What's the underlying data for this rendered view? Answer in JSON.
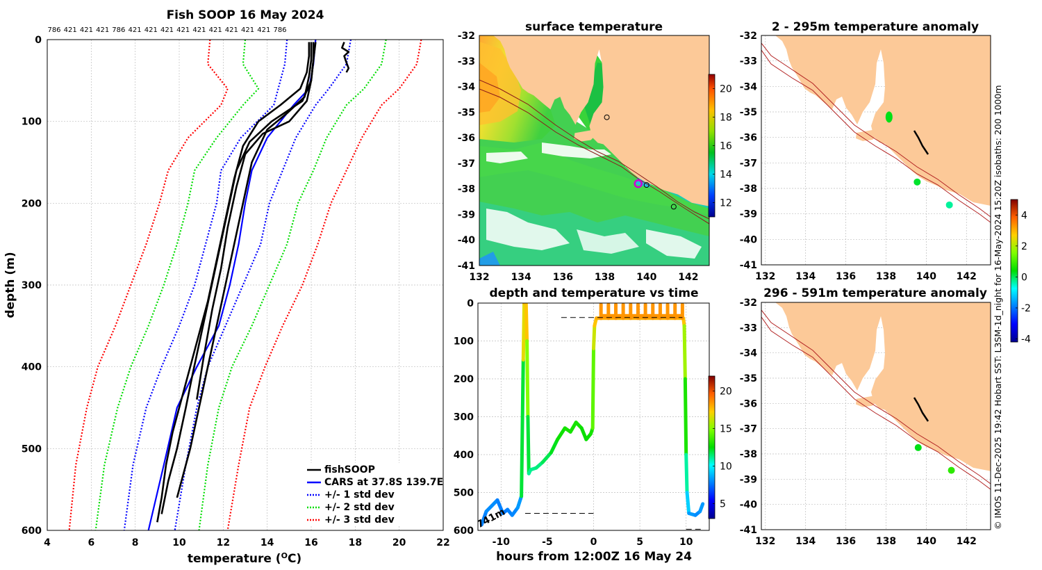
{
  "chart_data": [
    {
      "type": "line",
      "id": "profile",
      "title": "Fish SOOP 16 May 2024",
      "xlabel_base": "temperature (",
      "xlabel_sup": "O",
      "xlabel_end": "C)",
      "ylabel": "depth (m)",
      "xlim": [
        4,
        22
      ],
      "ylim": [
        0,
        600
      ],
      "xticks": [
        4,
        6,
        8,
        10,
        12,
        14,
        16,
        18,
        20,
        22
      ],
      "yticks": [
        0,
        100,
        200,
        300,
        400,
        500,
        600
      ],
      "top_labels": [
        "786",
        "421",
        "421",
        "421",
        "786",
        "421",
        "421",
        "421",
        "421",
        "421",
        "421",
        "421",
        "421",
        "421",
        "786"
      ],
      "legend": [
        {
          "label": "fishSOOP",
          "color": "#000000",
          "dash": false
        },
        {
          "label": "CARS at 37.8S 139.7E",
          "color": "#0000ff",
          "dash": false
        },
        {
          "label": "+/- 1 std dev",
          "color": "#0000ff",
          "dash": true
        },
        {
          "label": "+/- 2 std dev",
          "color": "#00dd00",
          "dash": true
        },
        {
          "label": "+/- 3 std dev",
          "color": "#ff0000",
          "dash": true
        }
      ],
      "series": [
        {
          "name": "CARS at 37.8S 139.7E",
          "color": "#0000ff",
          "x": [
            16.2,
            16.1,
            15.9,
            15.2,
            14.0,
            13.3,
            13.0,
            12.7,
            12.3,
            11.8,
            10.8,
            9.9,
            9.3,
            8.6
          ],
          "y": [
            0,
            30,
            60,
            80,
            120,
            160,
            200,
            250,
            300,
            350,
            400,
            450,
            520,
            600
          ]
        },
        {
          "name": "+3 std dev",
          "color": "#ff0000",
          "dash": true,
          "x": [
            21.0,
            20.8,
            20.0,
            19.2,
            18.3,
            17.6,
            16.9,
            16.3,
            15.6,
            14.7,
            13.9,
            13.2,
            12.7,
            12.2
          ],
          "y": [
            0,
            30,
            60,
            80,
            120,
            160,
            200,
            250,
            300,
            350,
            400,
            450,
            520,
            600
          ]
        },
        {
          "name": "+2 std dev",
          "color": "#00dd00",
          "dash": true,
          "x": [
            19.4,
            19.2,
            18.4,
            17.6,
            16.7,
            16.1,
            15.4,
            14.9,
            14.1,
            13.3,
            12.4,
            11.8,
            11.3,
            10.9
          ],
          "y": [
            0,
            30,
            60,
            80,
            120,
            160,
            200,
            250,
            300,
            350,
            400,
            450,
            520,
            600
          ]
        },
        {
          "name": "+1 std dev",
          "color": "#0000ff",
          "dash": true,
          "x": [
            17.8,
            17.6,
            16.8,
            16.2,
            15.3,
            14.7,
            14.1,
            13.7,
            12.9,
            12.1,
            11.3,
            10.8,
            10.3,
            9.8
          ],
          "y": [
            0,
            30,
            60,
            80,
            120,
            160,
            200,
            250,
            300,
            350,
            400,
            450,
            520,
            600
          ]
        },
        {
          "name": "-1 std dev",
          "color": "#0000ff",
          "dash": true,
          "x": [
            14.9,
            14.8,
            14.5,
            14.3,
            12.8,
            11.9,
            11.7,
            11.2,
            10.7,
            10.0,
            9.2,
            8.5,
            7.9,
            7.5
          ],
          "y": [
            0,
            30,
            60,
            80,
            120,
            160,
            200,
            250,
            300,
            350,
            400,
            450,
            520,
            600
          ]
        },
        {
          "name": "-2 std dev",
          "color": "#00dd00",
          "dash": true,
          "x": [
            13.0,
            12.9,
            13.6,
            12.9,
            11.7,
            10.7,
            10.4,
            9.9,
            9.3,
            8.6,
            7.8,
            7.2,
            6.6,
            6.2
          ],
          "y": [
            0,
            30,
            60,
            80,
            120,
            160,
            200,
            250,
            300,
            350,
            400,
            450,
            520,
            600
          ]
        },
        {
          "name": "-3 std dev",
          "color": "#ff0000",
          "dash": true,
          "x": [
            11.4,
            11.3,
            12.2,
            11.9,
            10.4,
            9.5,
            9.1,
            8.5,
            7.8,
            7.1,
            6.3,
            5.8,
            5.3,
            5.0
          ],
          "y": [
            0,
            30,
            60,
            80,
            120,
            160,
            200,
            250,
            300,
            350,
            400,
            450,
            520,
            600
          ]
        },
        {
          "name": "fishSOOP 1",
          "color": "#000000",
          "x": [
            15.9,
            15.9,
            15.8,
            15.5,
            14.6,
            13.6,
            12.9,
            12.5,
            12.1,
            11.7,
            11.3,
            10.9,
            10.5,
            10.1,
            9.7,
            9.4,
            9.2,
            9.0
          ],
          "y": [
            3,
            20,
            40,
            60,
            80,
            100,
            130,
            170,
            220,
            270,
            320,
            360,
            400,
            440,
            480,
            520,
            560,
            590
          ]
        },
        {
          "name": "fishSOOP 2",
          "color": "#000000",
          "x": [
            16.1,
            16.1,
            16.0,
            15.6,
            14.2,
            13.2,
            12.6,
            12.2,
            11.8,
            11.4,
            11.0,
            10.6,
            10.3,
            9.9,
            9.5,
            9.2
          ],
          "y": [
            3,
            25,
            50,
            75,
            100,
            125,
            160,
            210,
            260,
            310,
            360,
            410,
            450,
            500,
            540,
            580
          ]
        },
        {
          "name": "fishSOOP 3",
          "color": "#000000",
          "x": [
            16.2,
            16.1,
            16.0,
            15.8,
            15.0,
            13.8,
            13.0,
            12.6,
            12.2,
            11.9,
            11.5,
            11.1,
            10.8
          ],
          "y": [
            3,
            25,
            50,
            75,
            100,
            115,
            140,
            180,
            230,
            280,
            330,
            390,
            440
          ]
        },
        {
          "name": "fishSOOP 4",
          "color": "#000000",
          "x": [
            16.0,
            16.0,
            15.9,
            15.7,
            14.9,
            14.0,
            13.3,
            12.9,
            12.5,
            12.1,
            11.7,
            11.3,
            10.9,
            10.5,
            10.2,
            9.9
          ],
          "y": [
            3,
            25,
            45,
            70,
            90,
            110,
            150,
            200,
            250,
            300,
            350,
            400,
            450,
            500,
            530,
            560
          ]
        },
        {
          "name": "fishSOOP 5",
          "color": "#000000",
          "x": [
            17.5,
            17.4,
            17.7,
            17.5,
            17.6,
            17.7,
            17.6
          ],
          "y": [
            3,
            10,
            15,
            20,
            28,
            35,
            40
          ]
        }
      ]
    },
    {
      "type": "heatmap",
      "id": "sst",
      "title": "surface temperature",
      "xlim": [
        132,
        143
      ],
      "ylim": [
        -41,
        -32
      ],
      "xticks": [
        132,
        134,
        136,
        138,
        140,
        142
      ],
      "yticks": [
        -32,
        -33,
        -34,
        -35,
        -36,
        -37,
        -38,
        -39,
        -40,
        -41
      ],
      "colorbar": {
        "min": 11,
        "max": 21,
        "ticks": [
          12,
          14,
          16,
          18,
          20
        ]
      },
      "stations": [
        [
          138.1,
          -35.2
        ],
        [
          140.0,
          -37.85
        ],
        [
          141.3,
          -38.7
        ]
      ],
      "vessel": [
        139.6,
        -37.8
      ]
    },
    {
      "type": "scatter",
      "id": "timeline",
      "title": "depth and temperature vs time",
      "xlabel": "hours from 12:00Z 16 May 24",
      "xlim": [
        -12.5,
        12.5
      ],
      "ylim": [
        0,
        600
      ],
      "xticks": [
        -10,
        -5,
        0,
        5,
        10
      ],
      "yticks": [
        0,
        100,
        200,
        300,
        400,
        500,
        600
      ],
      "annotation": "741m",
      "colorbar": {
        "min": 3,
        "max": 22,
        "ticks": [
          5,
          10,
          15,
          20
        ]
      },
      "track": {
        "t": [
          -12.1,
          -11.6,
          -11.0,
          -10.4,
          -9.8,
          -9.3,
          -8.8,
          -8.2,
          -7.8,
          -7.6,
          -7.5,
          -7.4,
          -7.3,
          -7.2,
          -7.1,
          -7.0,
          -6.8,
          -6.2,
          -5.5,
          -4.6,
          -3.9,
          -3.1,
          -2.5,
          -1.9,
          -1.3,
          -0.8,
          -0.3,
          -0.1,
          0.0,
          0.1,
          0.3,
          0.8,
          5.0,
          9.7,
          9.8,
          9.9,
          10.0,
          10.1,
          10.3,
          11.0,
          11.5,
          11.8
        ],
        "depth": [
          585,
          550,
          535,
          520,
          555,
          545,
          560,
          540,
          510,
          150,
          0,
          0,
          0,
          100,
          300,
          450,
          440,
          435,
          420,
          395,
          360,
          330,
          340,
          315,
          330,
          360,
          345,
          330,
          120,
          60,
          40,
          40,
          40,
          40,
          60,
          200,
          400,
          500,
          555,
          560,
          550,
          530
        ],
        "temp": [
          7.5,
          8.0,
          8.0,
          8.0,
          7.5,
          7.8,
          7.8,
          8.0,
          8.5,
          15.5,
          18.0,
          18.0,
          18.0,
          17.0,
          13.0,
          11.0,
          11.2,
          11.2,
          11.5,
          12.0,
          12.5,
          13.0,
          12.8,
          13.0,
          12.8,
          12.5,
          12.8,
          13.0,
          15.5,
          17.0,
          18.0,
          18.0,
          18.0,
          18.0,
          17.0,
          14.0,
          12.0,
          10.0,
          8.5,
          8.0,
          8.0,
          8.5
        ]
      },
      "surface_cycles": {
        "t_start": 0.8,
        "t_end": 9.6,
        "count": 12,
        "depth_top": 0,
        "depth_bottom": 40
      },
      "dashes": [
        {
          "t0": -7.4,
          "t1": 0.0,
          "depth": 555
        },
        {
          "t0": -3.5,
          "t1": 9.6,
          "depth": 38
        },
        {
          "t0": 10.0,
          "t1": 11.8,
          "depth": 597
        }
      ]
    },
    {
      "type": "map",
      "id": "anom_shallow",
      "title": "2 - 295m temperature anomaly",
      "xlim": [
        131.8,
        143.2
      ],
      "ylim": [
        -41,
        -32
      ],
      "xticks": [
        132,
        134,
        136,
        138,
        140,
        142
      ],
      "yticks": [
        -32,
        -33,
        -34,
        -35,
        -36,
        -37,
        -38,
        -39,
        -40,
        -41
      ],
      "points": [
        {
          "lon": 138.15,
          "lat": -35.2,
          "anomaly": 0.3
        },
        {
          "lon": 139.55,
          "lat": -37.75,
          "anomaly": 0.2
        },
        {
          "lon": 141.15,
          "lat": -38.65,
          "anomaly": -0.3
        }
      ]
    },
    {
      "type": "map",
      "id": "anom_deep",
      "title": "296 - 591m temperature anomaly",
      "xlim": [
        131.8,
        143.2
      ],
      "ylim": [
        -41,
        -32
      ],
      "xticks": [
        132,
        134,
        136,
        138,
        140,
        142
      ],
      "yticks": [
        -32,
        -33,
        -34,
        -35,
        -36,
        -37,
        -38,
        -39,
        -40,
        -41
      ],
      "points": [
        {
          "lon": 139.6,
          "lat": -37.75,
          "anomaly": 0.3
        },
        {
          "lon": 141.25,
          "lat": -38.65,
          "anomaly": 0.8
        }
      ]
    }
  ],
  "anomaly_colorbar": {
    "min": -4.2,
    "max": 5,
    "ticks": [
      -4,
      -2,
      0,
      2,
      4
    ]
  },
  "side_note": "© IMOS 11-Dec-2025 19:42 Hobart SST: L3SM-1d_night for 16-May-2024 15:20Z  isobaths: 200  1000m",
  "colors": {
    "land": "#fcc998",
    "isobath": "#b22222",
    "grid": "#bdbdbd"
  }
}
